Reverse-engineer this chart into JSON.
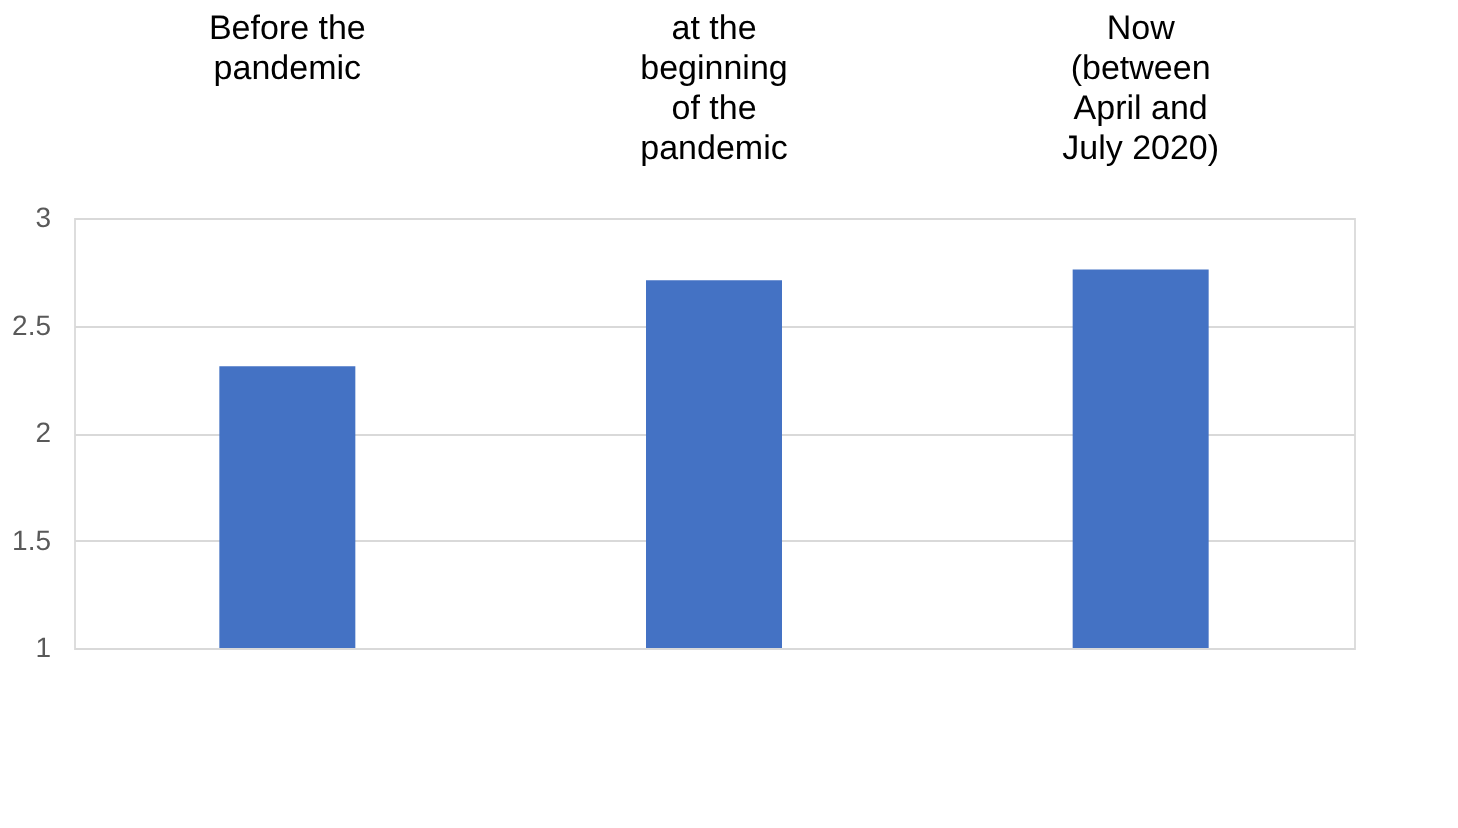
{
  "chart_data": {
    "type": "bar",
    "categories": [
      "Before the pandemic",
      "at the beginning of the pandemic",
      "Now (between April and July 2020)"
    ],
    "values": [
      2.31,
      2.71,
      2.76
    ],
    "color": "#4472c4",
    "ylim": [
      1,
      3
    ],
    "yticks": [
      1,
      1.5,
      2,
      2.5,
      3
    ],
    "grid": "y"
  }
}
